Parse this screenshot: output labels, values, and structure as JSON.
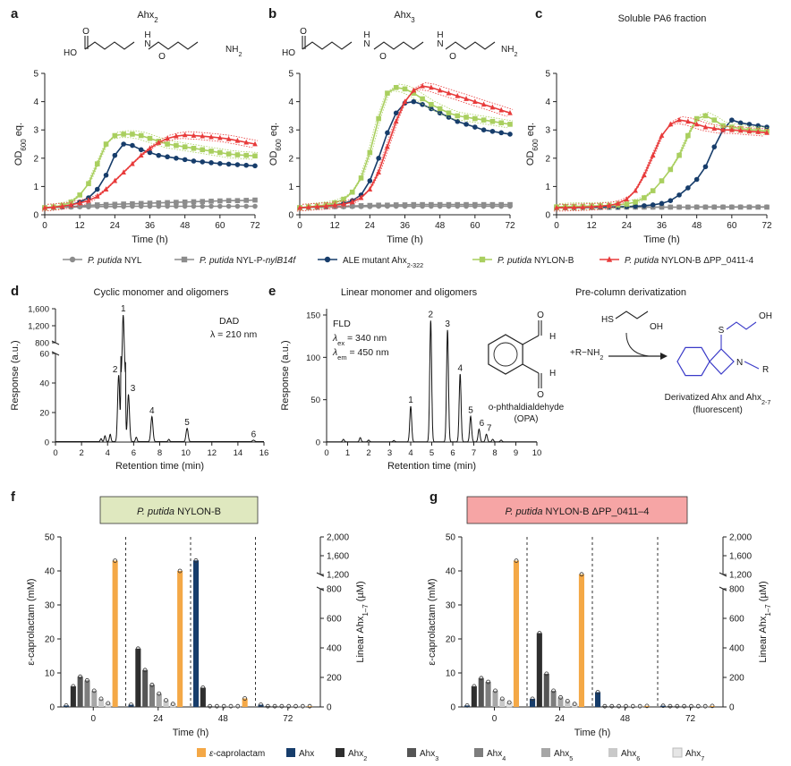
{
  "chart_data": [
    {
      "panel": "a",
      "type": "line",
      "title": "Ahx2",
      "xlabel": "Time (h)",
      "ylabel": "OD600 eq.",
      "xlim": [
        0,
        72
      ],
      "ylim": [
        0,
        5
      ],
      "xticks": [
        "0",
        "12",
        "24",
        "36",
        "48",
        "60",
        "72"
      ],
      "yticks": [
        "0",
        "1",
        "2",
        "3",
        "4",
        "5"
      ],
      "x": [
        0,
        3,
        6,
        9,
        12,
        15,
        18,
        21,
        24,
        27,
        30,
        33,
        36,
        39,
        42,
        45,
        48,
        51,
        54,
        57,
        60,
        63,
        66,
        69,
        72
      ],
      "series": [
        {
          "name": "P. putida NYL",
          "values": [
            0.25,
            0.26,
            0.27,
            0.27,
            0.28,
            0.28,
            0.29,
            0.29,
            0.29,
            0.29,
            0.3,
            0.3,
            0.3,
            0.3,
            0.3,
            0.3,
            0.3,
            0.3,
            0.3,
            0.3,
            0.3,
            0.3,
            0.3,
            0.3,
            0.3
          ]
        },
        {
          "name": "P. putida NYL-P-nylB14f",
          "values": [
            0.25,
            0.26,
            0.28,
            0.29,
            0.31,
            0.33,
            0.35,
            0.36,
            0.37,
            0.38,
            0.39,
            0.4,
            0.41,
            0.42,
            0.43,
            0.44,
            0.45,
            0.46,
            0.47,
            0.48,
            0.49,
            0.5,
            0.5,
            0.51,
            0.52
          ]
        },
        {
          "name": "ALE mutant Ahx2-322",
          "values": [
            0.25,
            0.27,
            0.3,
            0.35,
            0.45,
            0.6,
            0.9,
            1.4,
            2.1,
            2.5,
            2.45,
            2.3,
            2.2,
            2.1,
            2.05,
            2.0,
            1.95,
            1.9,
            1.87,
            1.84,
            1.81,
            1.79,
            1.77,
            1.75,
            1.73
          ]
        },
        {
          "name": "P. putida NYLON-B",
          "values": [
            0.25,
            0.28,
            0.33,
            0.45,
            0.7,
            1.1,
            1.8,
            2.5,
            2.8,
            2.85,
            2.85,
            2.8,
            2.7,
            2.6,
            2.5,
            2.45,
            2.4,
            2.35,
            2.3,
            2.25,
            2.2,
            2.15,
            2.12,
            2.1,
            2.08
          ]
        },
        {
          "name": "P. putida NYLON-B ΔPP_0411-4",
          "values": [
            0.25,
            0.27,
            0.3,
            0.35,
            0.42,
            0.5,
            0.65,
            0.9,
            1.2,
            1.5,
            1.8,
            2.1,
            2.35,
            2.55,
            2.7,
            2.78,
            2.82,
            2.8,
            2.78,
            2.75,
            2.72,
            2.68,
            2.62,
            2.56,
            2.5
          ]
        }
      ]
    },
    {
      "panel": "b",
      "type": "line",
      "title": "Ahx3",
      "xlabel": "Time (h)",
      "ylabel": "OD600 eq.",
      "xlim": [
        0,
        72
      ],
      "ylim": [
        0,
        5
      ],
      "xticks": [
        "0",
        "12",
        "24",
        "36",
        "48",
        "60",
        "72"
      ],
      "yticks": [
        "0",
        "1",
        "2",
        "3",
        "4",
        "5"
      ],
      "x": [
        0,
        3,
        6,
        9,
        12,
        15,
        18,
        21,
        24,
        27,
        30,
        33,
        36,
        39,
        42,
        45,
        48,
        51,
        54,
        57,
        60,
        63,
        66,
        69,
        72
      ],
      "series": [
        {
          "name": "P. putida NYL",
          "values": [
            0.25,
            0.26,
            0.27,
            0.27,
            0.28,
            0.28,
            0.29,
            0.29,
            0.29,
            0.3,
            0.3,
            0.3,
            0.3,
            0.3,
            0.3,
            0.3,
            0.3,
            0.3,
            0.3,
            0.3,
            0.3,
            0.3,
            0.3,
            0.3,
            0.3
          ]
        },
        {
          "name": "P. putida NYL-P-nylB14f",
          "values": [
            0.25,
            0.26,
            0.27,
            0.28,
            0.29,
            0.3,
            0.31,
            0.32,
            0.33,
            0.34,
            0.34,
            0.35,
            0.35,
            0.36,
            0.36,
            0.36,
            0.36,
            0.36,
            0.36,
            0.36,
            0.36,
            0.36,
            0.36,
            0.36,
            0.36
          ]
        },
        {
          "name": "ALE mutant Ahx2-322",
          "values": [
            0.25,
            0.27,
            0.29,
            0.31,
            0.35,
            0.4,
            0.5,
            0.7,
            1.2,
            2.0,
            2.9,
            3.6,
            3.95,
            4.0,
            3.9,
            3.75,
            3.6,
            3.45,
            3.3,
            3.2,
            3.1,
            3.0,
            2.95,
            2.9,
            2.85
          ]
        },
        {
          "name": "P. putida NYLON-B",
          "values": [
            0.25,
            0.28,
            0.31,
            0.35,
            0.42,
            0.55,
            0.8,
            1.3,
            2.2,
            3.4,
            4.3,
            4.5,
            4.45,
            4.3,
            4.1,
            3.9,
            3.75,
            3.6,
            3.5,
            3.45,
            3.4,
            3.35,
            3.3,
            3.25,
            3.2
          ]
        },
        {
          "name": "P. putida NYLON-B ΔPP_0411-4",
          "values": [
            0.25,
            0.27,
            0.29,
            0.31,
            0.34,
            0.38,
            0.45,
            0.6,
            0.9,
            1.5,
            2.4,
            3.3,
            4.0,
            4.4,
            4.55,
            4.5,
            4.4,
            4.3,
            4.2,
            4.1,
            4.0,
            3.9,
            3.8,
            3.7,
            3.6
          ]
        }
      ]
    },
    {
      "panel": "c",
      "type": "line",
      "title": "Soluble PA6 fraction",
      "xlabel": "Time (h)",
      "ylabel": "OD600 eq.",
      "xlim": [
        0,
        72
      ],
      "ylim": [
        0,
        5
      ],
      "xticks": [
        "0",
        "12",
        "24",
        "36",
        "48",
        "60",
        "72"
      ],
      "yticks": [
        "0",
        "1",
        "2",
        "3",
        "4",
        "5"
      ],
      "x": [
        0,
        3,
        6,
        9,
        12,
        15,
        18,
        21,
        24,
        27,
        30,
        33,
        36,
        39,
        42,
        45,
        48,
        51,
        54,
        57,
        60,
        63,
        66,
        69,
        72
      ],
      "series": [
        {
          "name": "P. putida NYL",
          "values": [
            0.25,
            0.25,
            0.25,
            0.26,
            0.26,
            0.26,
            0.26,
            0.26,
            0.27,
            0.27,
            0.27,
            0.27,
            0.27,
            0.27,
            0.27,
            0.27,
            0.28,
            0.28,
            0.28,
            0.28,
            0.28,
            0.28,
            0.28,
            0.28,
            0.28
          ]
        },
        {
          "name": "P. putida NYL-P-nylB14f",
          "values": [
            0.25,
            0.25,
            0.25,
            0.26,
            0.26,
            0.26,
            0.26,
            0.26,
            0.27,
            0.27,
            0.27,
            0.27,
            0.27,
            0.27,
            0.27,
            0.27,
            0.27,
            0.27,
            0.27,
            0.27,
            0.27,
            0.27,
            0.27,
            0.27,
            0.27
          ]
        },
        {
          "name": "ALE mutant Ahx2-322",
          "values": [
            0.25,
            0.25,
            0.26,
            0.26,
            0.27,
            0.27,
            0.28,
            0.28,
            0.29,
            0.3,
            0.32,
            0.35,
            0.4,
            0.5,
            0.7,
            0.95,
            1.25,
            1.7,
            2.4,
            3.0,
            3.35,
            3.25,
            3.2,
            3.15,
            3.1
          ]
        },
        {
          "name": "P. putida NYLON-B",
          "values": [
            0.28,
            0.29,
            0.3,
            0.3,
            0.31,
            0.32,
            0.33,
            0.35,
            0.38,
            0.45,
            0.6,
            0.85,
            1.2,
            1.6,
            2.1,
            2.8,
            3.4,
            3.5,
            3.35,
            3.15,
            3.1,
            3.05,
            3.0,
            3.0,
            2.95
          ]
        },
        {
          "name": "P. putida NYLON-B ΔPP_0411-4",
          "values": [
            0.25,
            0.25,
            0.26,
            0.27,
            0.28,
            0.3,
            0.33,
            0.4,
            0.55,
            0.85,
            1.4,
            2.1,
            2.8,
            3.2,
            3.35,
            3.3,
            3.2,
            3.1,
            3.05,
            3.0,
            3.0,
            2.98,
            2.95,
            2.93,
            2.9
          ]
        }
      ]
    },
    {
      "panel": "d",
      "type": "line",
      "title": "Cyclic monomer and oligomers",
      "xlabel": "Retention time (min)",
      "ylabel": "Response (a.u.)",
      "detector": "DAD",
      "wavelength": "λ = 210 nm",
      "xlim": [
        0,
        16
      ],
      "ylim": [
        0,
        1600
      ],
      "xticks": [
        "0",
        "2",
        "4",
        "6",
        "8",
        "10",
        "12",
        "14",
        "16"
      ],
      "yticks": [
        "0",
        "20",
        "40",
        "60",
        "800",
        "1,200",
        "1,600"
      ],
      "peaks": [
        {
          "label": "1",
          "x": 5.2,
          "y": 1450
        },
        {
          "label": "2",
          "x": 4.85,
          "y": 45
        },
        {
          "label": "3",
          "x": 5.6,
          "y": 32
        },
        {
          "label": "4",
          "x": 7.4,
          "y": 17
        },
        {
          "label": "5",
          "x": 10.1,
          "y": 9
        },
        {
          "label": "6",
          "x": 15.2,
          "y": 1
        }
      ]
    },
    {
      "panel": "e",
      "type": "line",
      "title": "Linear monomer and oligomers",
      "xlabel": "Retention time (min)",
      "ylabel": "Response (a.u.)",
      "detector": "FLD",
      "ex": "= 340 nm",
      "em": "= 450 nm",
      "xlim": [
        0,
        10
      ],
      "ylim": [
        0,
        150
      ],
      "xticks": [
        "0",
        "1",
        "2",
        "3",
        "4",
        "5",
        "6",
        "7",
        "8",
        "9",
        "10"
      ],
      "yticks": [
        "0",
        "50",
        "100",
        "150"
      ],
      "peaks": [
        {
          "label": "1",
          "x": 4.0,
          "y": 42
        },
        {
          "label": "2",
          "x": 4.95,
          "y": 143
        },
        {
          "label": "3",
          "x": 5.75,
          "y": 132
        },
        {
          "label": "4",
          "x": 6.35,
          "y": 80
        },
        {
          "label": "5",
          "x": 6.85,
          "y": 30
        },
        {
          "label": "6",
          "x": 7.25,
          "y": 15
        },
        {
          "label": "7",
          "x": 7.6,
          "y": 9
        }
      ]
    },
    {
      "panel": "f",
      "type": "bar",
      "title": "P. putida NYLON-B",
      "xlabel": "Time (h)",
      "ylabel": "ε-caprolactam (mM)",
      "ylabel_right": "Linear Ahx1–7 (µM)",
      "categories": [
        "0",
        "24",
        "48",
        "72"
      ],
      "ylim": [
        0,
        50
      ],
      "ylim_right": [
        0,
        2000
      ],
      "yticks": [
        "0",
        "10",
        "20",
        "30",
        "40",
        "50"
      ],
      "yticks_right": [
        "0",
        "200",
        "400",
        "600",
        "800",
        "1,200",
        "1,600",
        "2,000"
      ],
      "series": [
        {
          "name": "ε-caprolactam",
          "axis": "left",
          "values": [
            43,
            40,
            2.5,
            0.2
          ]
        },
        {
          "name": "Ahx",
          "axis": "right",
          "values": [
            10,
            15,
            1500,
            15
          ]
        },
        {
          "name": "Ahx2",
          "axis": "right",
          "values": [
            140,
            395,
            130,
            5
          ]
        },
        {
          "name": "Ahx3",
          "axis": "right",
          "values": [
            205,
            250,
            3,
            5
          ]
        },
        {
          "name": "Ahx4",
          "axis": "right",
          "values": [
            180,
            150,
            3,
            5
          ]
        },
        {
          "name": "Ahx5",
          "axis": "right",
          "values": [
            110,
            90,
            3,
            5
          ]
        },
        {
          "name": "Ahx6",
          "axis": "right",
          "values": [
            55,
            45,
            3,
            4
          ]
        },
        {
          "name": "Ahx7",
          "axis": "right",
          "values": [
            25,
            20,
            3,
            4
          ]
        }
      ]
    },
    {
      "panel": "g",
      "type": "bar",
      "title": "P. putida NYLON-B ΔPP_0411–4",
      "xlabel": "Time (h)",
      "ylabel": "ε-caprolactam (mM)",
      "ylabel_right": "Linear Ahx1–7 (µM)",
      "categories": [
        "0",
        "24",
        "48",
        "72"
      ],
      "ylim": [
        0,
        50
      ],
      "ylim_right": [
        0,
        2000
      ],
      "yticks": [
        "0",
        "10",
        "20",
        "30",
        "40",
        "50"
      ],
      "yticks_right": [
        "0",
        "200",
        "400",
        "600",
        "800",
        "1,200",
        "1,600",
        "2,000"
      ],
      "series": [
        {
          "name": "ε-caprolactam",
          "axis": "left",
          "values": [
            43,
            39,
            0.3,
            0.3
          ]
        },
        {
          "name": "Ahx",
          "axis": "right",
          "values": [
            10,
            55,
            100,
            8
          ]
        },
        {
          "name": "Ahx2",
          "axis": "right",
          "values": [
            140,
            500,
            5,
            5
          ]
        },
        {
          "name": "Ahx3",
          "axis": "right",
          "values": [
            195,
            225,
            3,
            5
          ]
        },
        {
          "name": "Ahx4",
          "axis": "right",
          "values": [
            170,
            110,
            3,
            5
          ]
        },
        {
          "name": "Ahx5",
          "axis": "right",
          "values": [
            110,
            65,
            3,
            5
          ]
        },
        {
          "name": "Ahx6",
          "axis": "right",
          "values": [
            55,
            40,
            3,
            5
          ]
        },
        {
          "name": "Ahx7",
          "axis": "right",
          "values": [
            30,
            20,
            3,
            4
          ]
        }
      ]
    }
  ],
  "labels": {
    "panels": [
      "a",
      "b",
      "c",
      "d",
      "e",
      "f",
      "g"
    ],
    "chem_a": [
      "HO",
      "O",
      "H",
      "N",
      "NH",
      "2",
      "O"
    ],
    "chem_b": [
      "HO",
      "O",
      "H",
      "N",
      "O",
      "H",
      "N",
      "NH",
      "2",
      "O"
    ],
    "deriv_title": "Pre-column derivatization",
    "opa_name": "o-phthaldialdehyde",
    "opa_abbr": "(OPA)",
    "mercapto": [
      "HS",
      "OH"
    ],
    "reagent": "+R−NH",
    "reagent_sub": "2",
    "product_label_1": "Derivatized Ahx and Ahx",
    "product_label_sub": "2-7",
    "product_label_2": "(fluorescent)",
    "product_atoms": [
      "S",
      "OH",
      "N",
      "R"
    ],
    "h_atom": "H",
    "o_atom": "O",
    "x_word": "x"
  },
  "legend_top": [
    "P. putida NYL",
    "P. putida NYL-P-nylB14f",
    "ALE mutant Ahx2-322",
    "P. putida NYLON-B",
    "P. putida NYLON-B ΔPP_0411-4"
  ],
  "legend_bottom": [
    "ε-caprolactam",
    "Ahx",
    "Ahx2",
    "Ahx3",
    "Ahx4",
    "Ahx5",
    "Ahx6",
    "Ahx7"
  ],
  "colors": {
    "nyl": "#8c8c8c",
    "nylb14f": "#8c8c8c",
    "ale": "#173d6b",
    "nylonb": "#a9cf5f",
    "delta": "#e83b3b",
    "capro": "#f4a846",
    "ahx": "#173d6b",
    "ahx2": "#2e2e2e",
    "ahx3": "#555555",
    "ahx4": "#7d7d7d",
    "ahx5": "#a6a6a6",
    "ahx6": "#c9c9c9",
    "ahx7": "#e6e6e6",
    "box_f": "#dfe8bf",
    "box_g": "#f6a5a5",
    "blue": "#3a3ac8"
  }
}
